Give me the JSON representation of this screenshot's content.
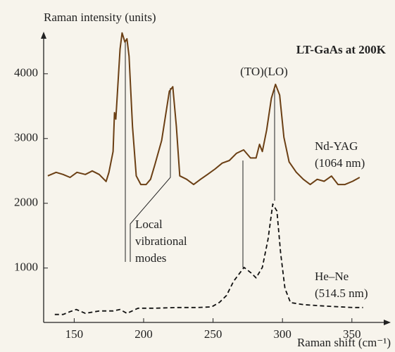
{
  "chart_data": {
    "type": "line",
    "title": "LT-GaAs at 200K",
    "y_label": "Raman intensity (units)",
    "x_label": "Raman shift (cm⁻¹)",
    "annotations": [
      "(TO)(LO)",
      "Local",
      "vibrational",
      "modes"
    ],
    "xlim": [
      128,
      378
    ],
    "ylim": [
      160,
      4650
    ],
    "xticks": [
      150,
      200,
      250,
      300,
      350
    ],
    "yticks": [
      1000,
      2000,
      3000,
      4000
    ],
    "series": [
      {
        "name": "Nd-YAG",
        "note": "(1064 nm)",
        "color": "#6b3f14",
        "dashed": false,
        "x": [
          131,
          137,
          142,
          147,
          152,
          158,
          163,
          168,
          173,
          175,
          178,
          179,
          180,
          183,
          184.5,
          186.5,
          188,
          189.5,
          192,
          194.7,
          198,
          201.8,
          205,
          208,
          213,
          218.5,
          221,
          223.6,
          226,
          231,
          236,
          241,
          246,
          251.5,
          256.6,
          261.7,
          266.8,
          272,
          277,
          281,
          283.5,
          285.5,
          288.6,
          292,
          295,
          298,
          301,
          304.8,
          309.9,
          315,
          320,
          325,
          330,
          335.3,
          340,
          345,
          350.5,
          355.6
        ],
        "values": [
          2424,
          2478,
          2445,
          2400,
          2478,
          2445,
          2500,
          2445,
          2337,
          2478,
          2800,
          3400,
          3300,
          4380,
          4630,
          4490,
          4540,
          4270,
          3185,
          2424,
          2290,
          2290,
          2370,
          2590,
          2970,
          3730,
          3800,
          3185,
          2424,
          2370,
          2290,
          2370,
          2445,
          2530,
          2620,
          2660,
          2770,
          2825,
          2700,
          2700,
          2910,
          2800,
          3130,
          3620,
          3837,
          3670,
          3020,
          2640,
          2480,
          2370,
          2290,
          2370,
          2340,
          2420,
          2290,
          2290,
          2340,
          2400
        ]
      },
      {
        "name": "He–Ne",
        "note": "(514.5 nm)",
        "color": "#111111",
        "dashed": true,
        "x": [
          136,
          142,
          147,
          151.5,
          158,
          168,
          178,
          183,
          188,
          196,
          208,
          224,
          239,
          249,
          254.6,
          259.7,
          264.7,
          272.3,
          277.4,
          281,
          285.5,
          289.6,
          293,
          296,
          298.7,
          301.8,
          305.8,
          315,
          330,
          350.5,
          358
        ],
        "values": [
          283,
          283,
          326,
          360,
          300,
          337,
          337,
          360,
          300,
          380,
          380,
          390,
          390,
          400,
          470,
          576,
          793,
          1010,
          924,
          848,
          1010,
          1446,
          1989,
          1880,
          1228,
          685,
          467,
          435,
          413,
          390,
          390
        ]
      }
    ]
  }
}
